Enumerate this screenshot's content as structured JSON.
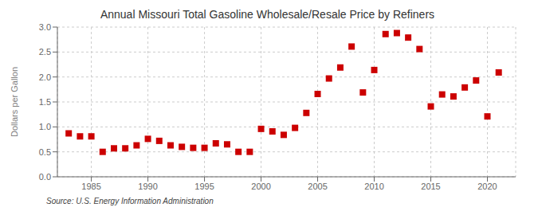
{
  "chart_data": {
    "type": "scatter",
    "title": "Annual Missouri Total Gasoline Wholesale/Resale Price by Refiners",
    "ylabel": "Dollars per Gallon",
    "annotations": [
      "Source: U.S. Energy Information Administration"
    ],
    "x": [
      1983,
      1984,
      1985,
      1986,
      1987,
      1988,
      1989,
      1990,
      1991,
      1992,
      1993,
      1994,
      1995,
      1996,
      1997,
      1998,
      1999,
      2000,
      2001,
      2002,
      2003,
      2004,
      2005,
      2006,
      2007,
      2008,
      2009,
      2010,
      2011,
      2012,
      2013,
      2014,
      2015,
      2016,
      2017,
      2018,
      2019,
      2020,
      2021
    ],
    "values": [
      0.87,
      0.81,
      0.81,
      0.5,
      0.57,
      0.57,
      0.63,
      0.76,
      0.72,
      0.63,
      0.6,
      0.58,
      0.58,
      0.67,
      0.65,
      0.5,
      0.5,
      0.96,
      0.91,
      0.84,
      0.98,
      1.28,
      1.66,
      1.97,
      2.19,
      2.61,
      1.69,
      2.14,
      2.86,
      2.88,
      2.79,
      2.56,
      1.41,
      1.65,
      1.61,
      1.79,
      1.93,
      1.21,
      2.09
    ],
    "color": "#CC0000",
    "marker": "square",
    "xlim": [
      1982,
      2022.5
    ],
    "ylim": [
      0.0,
      3.0
    ],
    "xticks": [
      1985,
      1990,
      1995,
      2000,
      2005,
      2010,
      2015,
      2020
    ],
    "yticks": [
      {
        "value": 0,
        "label": "0.0"
      },
      0.5,
      {
        "value": 1,
        "label": "1.0"
      },
      1.5,
      {
        "value": 2,
        "label": "2.0"
      },
      2.5,
      {
        "value": 3,
        "label": "3.0"
      }
    ],
    "grid": true
  }
}
